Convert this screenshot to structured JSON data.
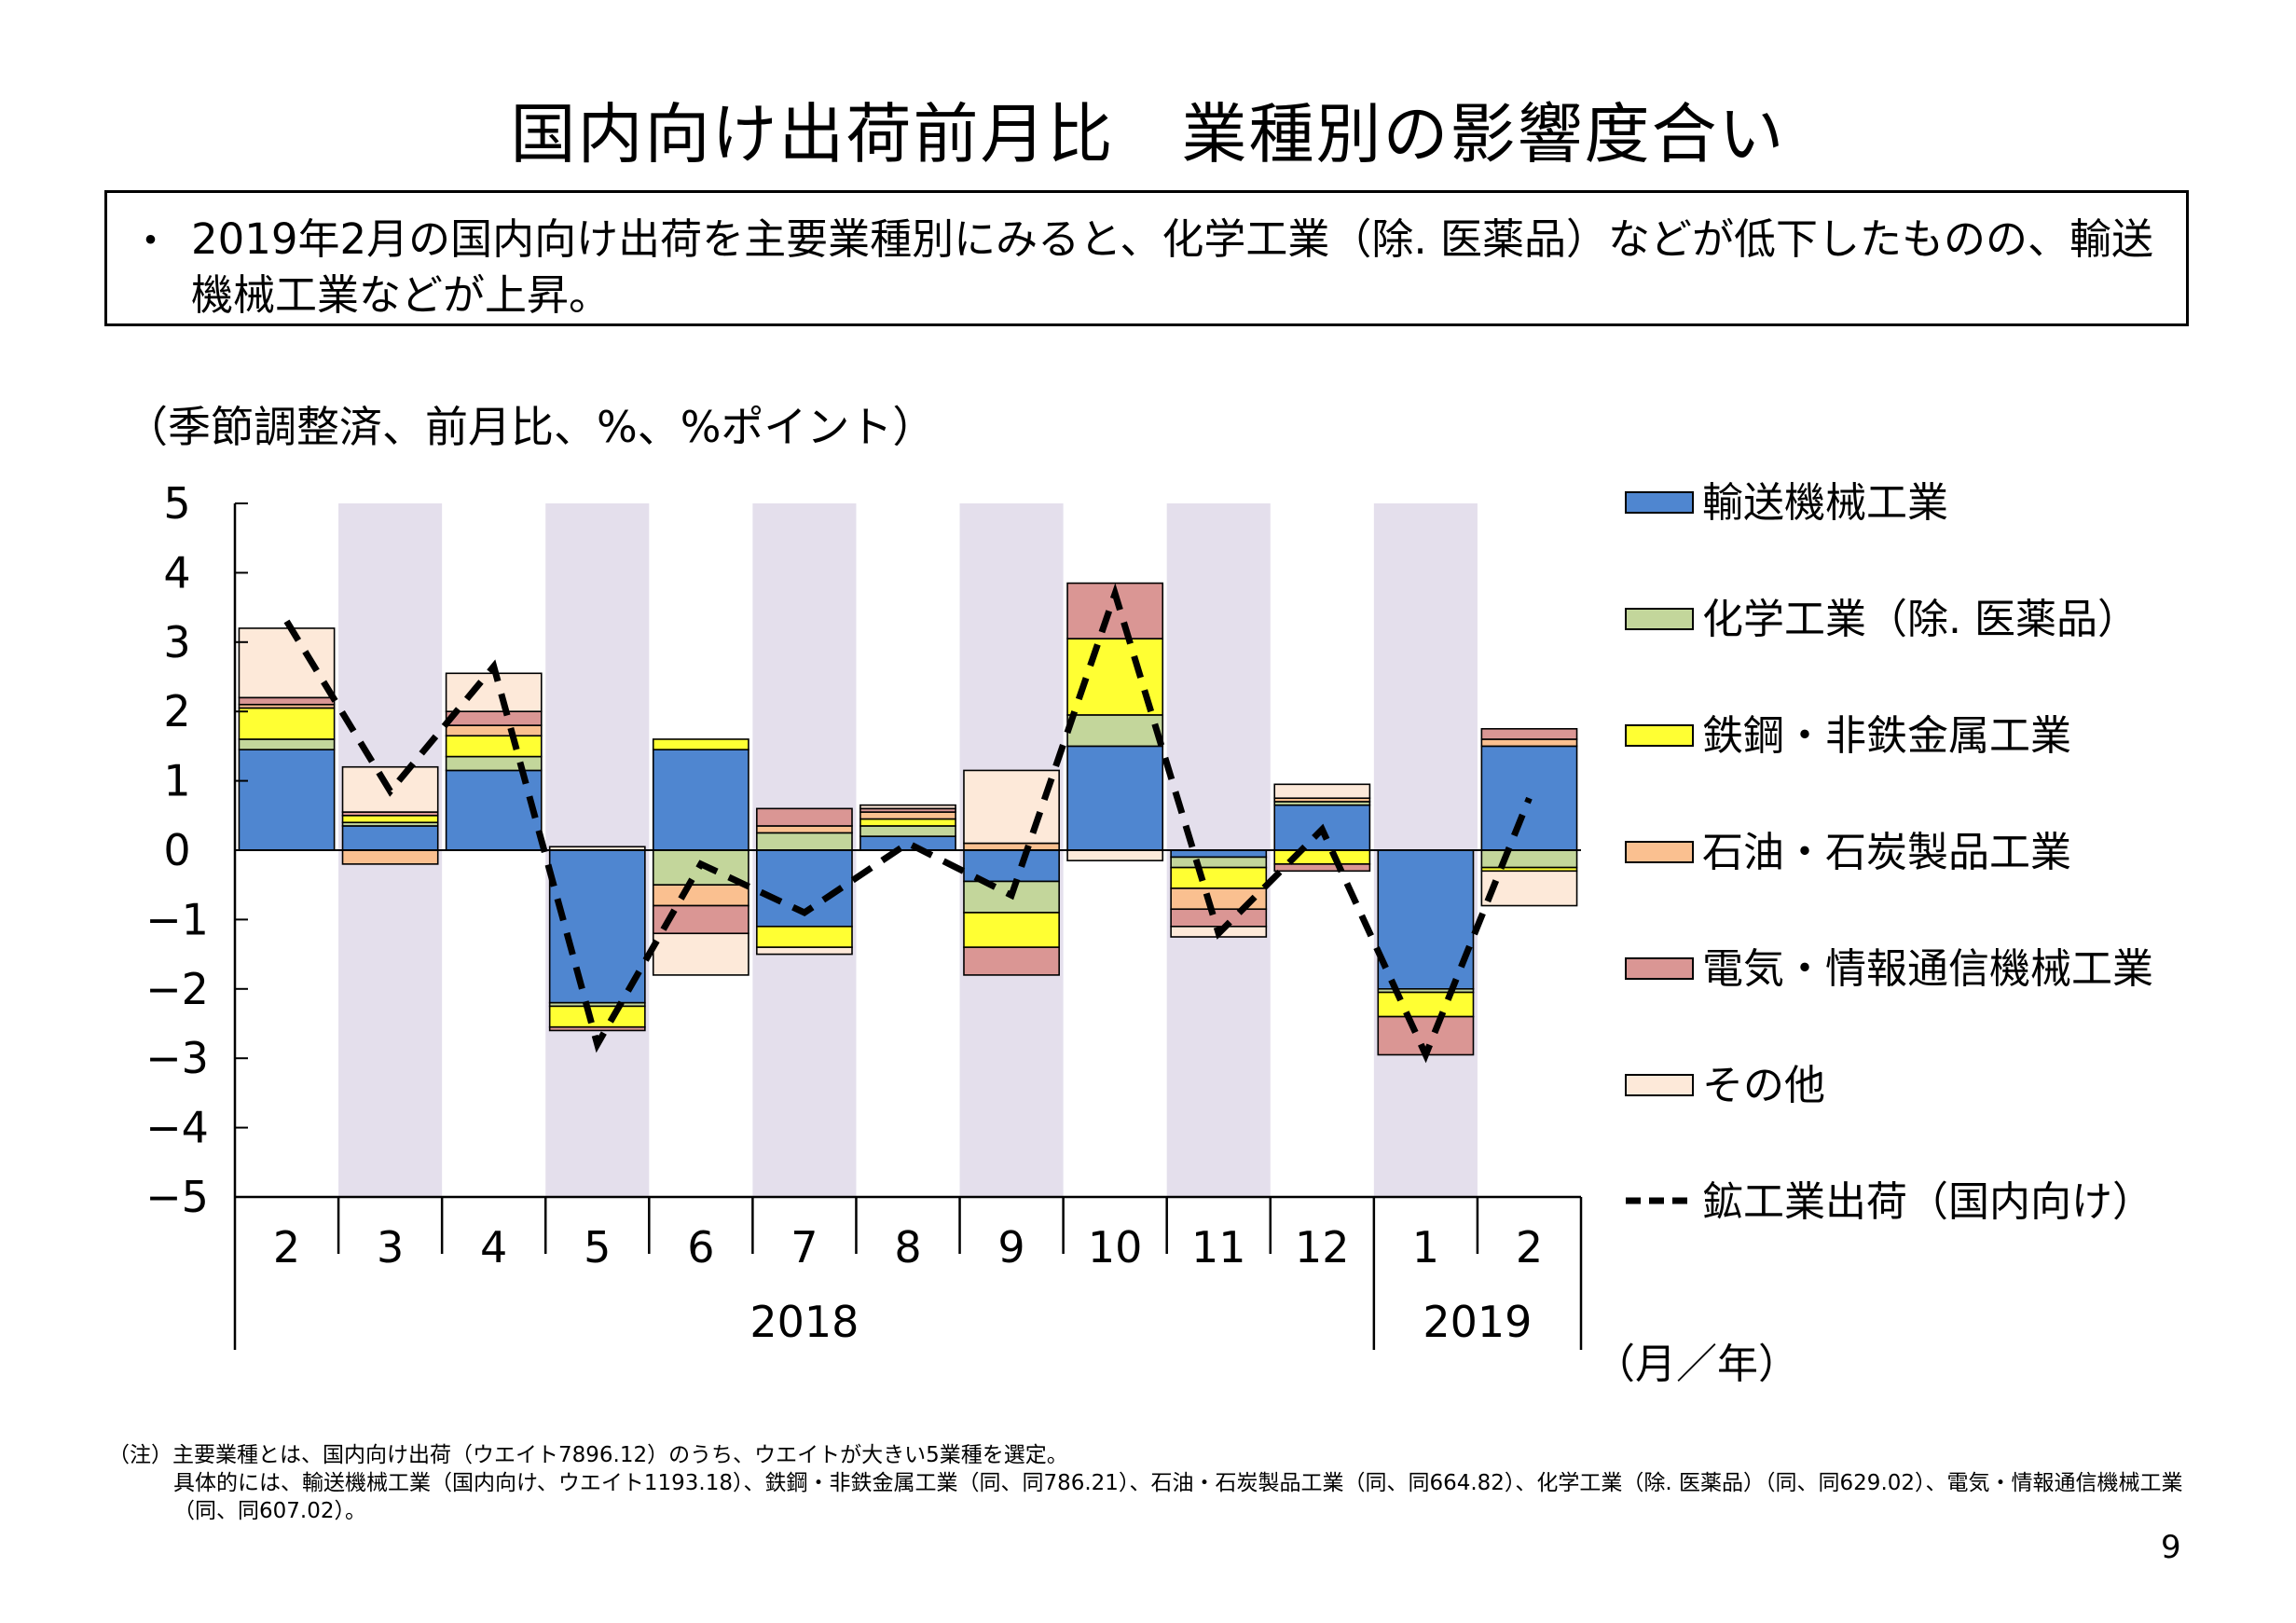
{
  "title": "国内向け出荷前月比　業種別の影響度合い",
  "summary": {
    "bullet": "・",
    "text": "2019年2月の国内向け出荷を主要業種別にみると、化学工業（除. 医薬品）などが低下したものの、輸送機械工業などが上昇。"
  },
  "unit_label": "（季節調整済、前月比、%、%ポイント）",
  "axis_unit_label": "（月／年）",
  "notes": {
    "line1": "（注）主要業種とは、国内向け出荷（ウエイト7896.12）のうち、ウエイトが大きい5業種を選定。",
    "line2": "具体的には、輸送機械工業（国内向け、ウエイト1193.18）、鉄鋼・非鉄金属工業（同、同786.21）、石油・石炭製品工業（同、同664.82）、化学工業（除. 医薬品）（同、同629.02）、電気・情報通信機械工業（同、同607.02）。"
  },
  "page_number": "9",
  "chart_data": {
    "type": "bar",
    "stacked": true,
    "categories": [
      "2",
      "3",
      "4",
      "5",
      "6",
      "7",
      "8",
      "9",
      "10",
      "11",
      "12",
      "1",
      "2"
    ],
    "year_labels": [
      {
        "label": "2018",
        "from": 0,
        "to": 10
      },
      {
        "label": "2019",
        "from": 11,
        "to": 12
      }
    ],
    "ylim": [
      -5,
      5
    ],
    "yticks": [
      "5",
      "4",
      "3",
      "2",
      "1",
      "0",
      "−1",
      "−2",
      "−3",
      "−4",
      "−5"
    ],
    "shaded_categories": [
      1,
      3,
      5,
      7,
      9,
      11
    ],
    "shade_color": "#e4dfec",
    "series": [
      {
        "name": "輸送機械工業",
        "color": "#4f86d0",
        "values": [
          1.45,
          0.35,
          1.15,
          -2.2,
          1.45,
          -1.1,
          0.2,
          -0.45,
          1.5,
          -0.1,
          0.65,
          -2.0,
          1.5
        ]
      },
      {
        "name": "化学工業（除. 医薬品）",
        "color": "#c3d69b",
        "values": [
          0.15,
          0.05,
          0.2,
          -0.05,
          -0.5,
          0.25,
          0.15,
          -0.45,
          0.45,
          -0.15,
          0.05,
          -0.05,
          -0.25
        ]
      },
      {
        "name": "鉄鋼・非鉄金属工業",
        "color": "#ffff33",
        "values": [
          0.45,
          0.1,
          0.3,
          -0.3,
          0.15,
          -0.3,
          0.1,
          -0.5,
          1.1,
          -0.3,
          -0.2,
          -0.35,
          -0.05
        ]
      },
      {
        "name": "石油・石炭製品工業",
        "color": "#fac090",
        "values": [
          0.05,
          -0.2,
          0.15,
          0.0,
          -0.3,
          0.1,
          0.1,
          0.1,
          0.0,
          -0.3,
          0.05,
          0.0,
          0.1
        ]
      },
      {
        "name": "電気・情報通信機械工業",
        "color": "#da9694",
        "values": [
          0.1,
          0.05,
          0.2,
          -0.05,
          -0.4,
          0.25,
          0.05,
          -0.4,
          0.8,
          -0.25,
          -0.1,
          -0.55,
          0.15
        ]
      },
      {
        "name": "その他",
        "color": "#fde9d9",
        "values": [
          1.0,
          0.65,
          0.55,
          0.05,
          -0.6,
          -0.1,
          0.05,
          1.05,
          -0.15,
          -0.15,
          0.2,
          0.0,
          -0.5
        ]
      }
    ],
    "line": {
      "name": "鉱工業出荷（国内向け）",
      "color": "#000000",
      "dash": true,
      "values": [
        3.3,
        0.85,
        2.65,
        -2.8,
        -0.2,
        -0.9,
        0.1,
        -0.65,
        3.7,
        -1.2,
        0.3,
        -2.95,
        0.75
      ]
    }
  }
}
